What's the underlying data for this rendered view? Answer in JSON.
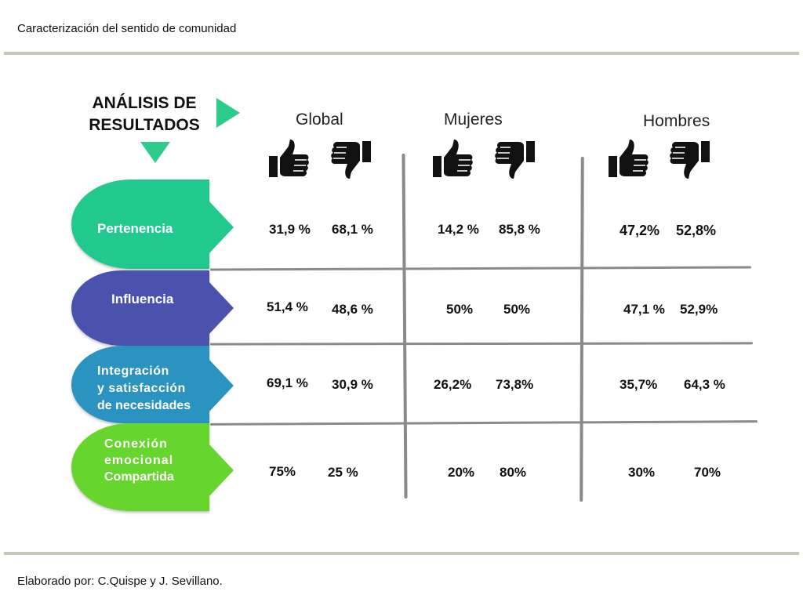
{
  "header": {
    "title": "Caracterización del sentido de comunidad"
  },
  "footer": {
    "text": "Elaborado por: C.Quispe y J. Sevillano."
  },
  "analysis": {
    "title_line1": "ANÁLISIS DE",
    "title_line2": "RESULTADOS"
  },
  "columns": [
    {
      "label": "Global"
    },
    {
      "label": "Mujeres"
    },
    {
      "label": "Hombres"
    }
  ],
  "rows": [
    {
      "label_lines": [
        "Pertenencia"
      ],
      "color": "#22c98e",
      "values": [
        [
          "31,9 %",
          "68,1 %"
        ],
        [
          "14,2 %",
          "85,8 %"
        ],
        [
          "47,2%",
          "52,8%"
        ]
      ]
    },
    {
      "label_lines": [
        "Influencia"
      ],
      "color": "#4b52ad",
      "values": [
        [
          "51,4 %",
          "48,6 %"
        ],
        [
          "50%",
          "50%"
        ],
        [
          "47,1 %",
          "52,9%"
        ]
      ]
    },
    {
      "label_lines": [
        "Integración",
        "y satisfacción",
        "de necesidades"
      ],
      "color": "#2a93c0",
      "values": [
        [
          "69,1 %",
          "30,9 %"
        ],
        [
          "26,2%",
          "73,8%"
        ],
        [
          "35,7%",
          "64,3 %"
        ]
      ]
    },
    {
      "label_lines": [
        "Conexión",
        "emocional",
        "Compartida"
      ],
      "color": "#66d62e",
      "values": [
        [
          "75%",
          "25 %"
        ],
        [
          "20%",
          "80%"
        ],
        [
          "30%",
          "70%"
        ]
      ]
    }
  ],
  "icons": {
    "positive": "thumbs-up-icon",
    "negative": "thumbs-down-icon"
  }
}
